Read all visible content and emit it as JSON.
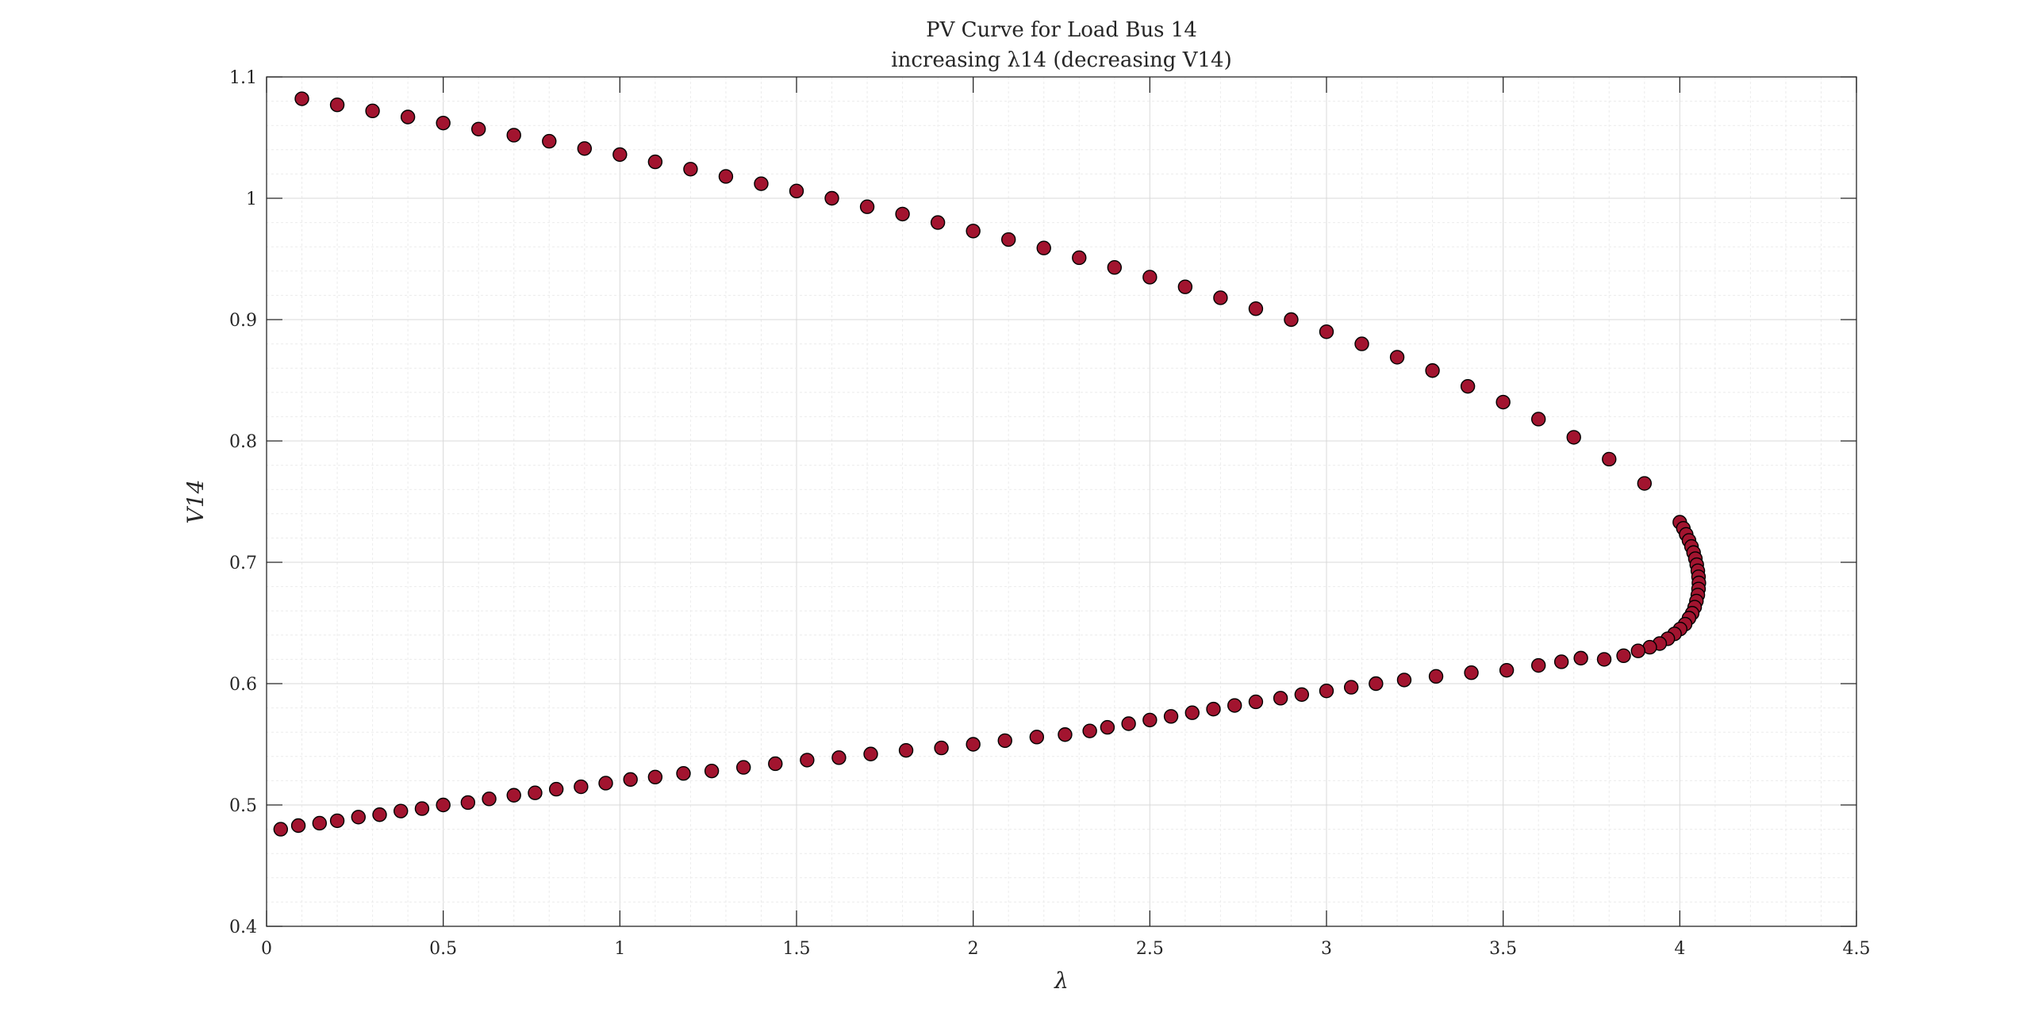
{
  "chart_data": {
    "type": "scatter",
    "title": "PV Curve for Load Bus 14",
    "subtitle": "increasing λ14 (decreasing V14)",
    "xlabel": "λ",
    "ylabel": "V14",
    "xlim": [
      0,
      4.5
    ],
    "ylim": [
      0.4,
      1.1
    ],
    "xticks": [
      "0",
      "0.5",
      "1",
      "1.5",
      "2",
      "2.5",
      "3",
      "3.5",
      "4",
      "4.5"
    ],
    "yticks": [
      "0.4",
      "0.5",
      "0.6",
      "0.7",
      "0.8",
      "0.9",
      "1",
      "1.1"
    ],
    "grid": true,
    "minor_grid": true,
    "marker_color": "#A2142F",
    "marker_edge": "#000000",
    "series": [
      {
        "points": [
          [
            0.1,
            1.082
          ],
          [
            0.2,
            1.077
          ],
          [
            0.3,
            1.072
          ],
          [
            0.4,
            1.067
          ],
          [
            0.5,
            1.062
          ],
          [
            0.6,
            1.057
          ],
          [
            0.7,
            1.052
          ],
          [
            0.8,
            1.047
          ],
          [
            0.9,
            1.041
          ],
          [
            1.0,
            1.036
          ],
          [
            1.1,
            1.03
          ],
          [
            1.2,
            1.024
          ],
          [
            1.3,
            1.018
          ],
          [
            1.4,
            1.012
          ],
          [
            1.5,
            1.006
          ],
          [
            1.6,
            1.0
          ],
          [
            1.7,
            0.993
          ],
          [
            1.8,
            0.987
          ],
          [
            1.9,
            0.98
          ],
          [
            2.0,
            0.973
          ],
          [
            2.1,
            0.966
          ],
          [
            2.2,
            0.959
          ],
          [
            2.3,
            0.951
          ],
          [
            2.4,
            0.943
          ],
          [
            2.5,
            0.935
          ],
          [
            2.6,
            0.927
          ],
          [
            2.7,
            0.918
          ],
          [
            2.8,
            0.909
          ],
          [
            2.9,
            0.9
          ],
          [
            3.0,
            0.89
          ],
          [
            3.1,
            0.88
          ],
          [
            3.2,
            0.869
          ],
          [
            3.3,
            0.858
          ],
          [
            3.4,
            0.845
          ],
          [
            3.5,
            0.832
          ],
          [
            3.6,
            0.818
          ],
          [
            3.7,
            0.803
          ],
          [
            3.8,
            0.785
          ],
          [
            3.9,
            0.765
          ],
          [
            4.0,
            0.733
          ],
          [
            4.01,
            0.728
          ],
          [
            4.018,
            0.723
          ],
          [
            4.026,
            0.718
          ],
          [
            4.033,
            0.713
          ],
          [
            4.039,
            0.708
          ],
          [
            4.044,
            0.703
          ],
          [
            4.048,
            0.698
          ],
          [
            4.051,
            0.693
          ],
          [
            4.053,
            0.688
          ],
          [
            4.054,
            0.683
          ],
          [
            4.053,
            0.678
          ],
          [
            4.051,
            0.673
          ],
          [
            4.047,
            0.668
          ],
          [
            4.042,
            0.663
          ],
          [
            4.035,
            0.658
          ],
          [
            4.026,
            0.654
          ],
          [
            4.015,
            0.649
          ],
          [
            4.001,
            0.645
          ],
          [
            3.985,
            0.641
          ],
          [
            3.966,
            0.637
          ],
          [
            3.943,
            0.633
          ],
          [
            3.915,
            0.63
          ],
          [
            3.882,
            0.627
          ],
          [
            3.841,
            0.623
          ],
          [
            3.786,
            0.62
          ],
          [
            3.72,
            0.621
          ],
          [
            3.665,
            0.618
          ],
          [
            3.6,
            0.615
          ],
          [
            3.51,
            0.611
          ],
          [
            3.41,
            0.609
          ],
          [
            3.31,
            0.606
          ],
          [
            3.22,
            0.603
          ],
          [
            3.14,
            0.6
          ],
          [
            3.07,
            0.597
          ],
          [
            3.0,
            0.594
          ],
          [
            2.93,
            0.591
          ],
          [
            2.87,
            0.588
          ],
          [
            2.8,
            0.585
          ],
          [
            2.74,
            0.582
          ],
          [
            2.68,
            0.579
          ],
          [
            2.62,
            0.576
          ],
          [
            2.56,
            0.573
          ],
          [
            2.5,
            0.57
          ],
          [
            2.44,
            0.567
          ],
          [
            2.38,
            0.564
          ],
          [
            2.33,
            0.561
          ],
          [
            2.26,
            0.558
          ],
          [
            2.18,
            0.556
          ],
          [
            2.09,
            0.553
          ],
          [
            2.0,
            0.55
          ],
          [
            1.91,
            0.547
          ],
          [
            1.81,
            0.545
          ],
          [
            1.71,
            0.542
          ],
          [
            1.62,
            0.539
          ],
          [
            1.53,
            0.537
          ],
          [
            1.44,
            0.534
          ],
          [
            1.35,
            0.531
          ],
          [
            1.26,
            0.528
          ],
          [
            1.18,
            0.526
          ],
          [
            1.1,
            0.523
          ],
          [
            1.03,
            0.521
          ],
          [
            0.96,
            0.518
          ],
          [
            0.89,
            0.515
          ],
          [
            0.82,
            0.513
          ],
          [
            0.76,
            0.51
          ],
          [
            0.7,
            0.508
          ],
          [
            0.63,
            0.505
          ],
          [
            0.57,
            0.502
          ],
          [
            0.5,
            0.5
          ],
          [
            0.44,
            0.497
          ],
          [
            0.38,
            0.495
          ],
          [
            0.32,
            0.492
          ],
          [
            0.26,
            0.49
          ],
          [
            0.2,
            0.487
          ],
          [
            0.15,
            0.485
          ],
          [
            0.09,
            0.483
          ],
          [
            0.04,
            0.48
          ]
        ]
      }
    ]
  }
}
